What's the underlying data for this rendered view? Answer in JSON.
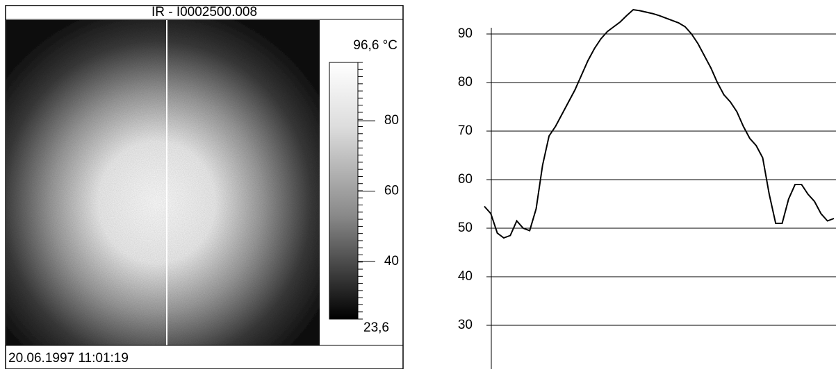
{
  "header": {
    "title": "IR - I0002500.008"
  },
  "colorbar": {
    "range": [
      {
        "value": 23.6,
        "label": "23,6"
      },
      {
        "value": 96.6,
        "label": "96,6 °C"
      }
    ],
    "ticks": [
      40,
      60,
      80
    ]
  },
  "footer": {
    "timestamp": "20.06.1997 11:01:19"
  },
  "chart_data": {
    "type": "line",
    "categories": [
      null,
      null,
      null,
      null,
      null,
      null,
      null,
      null,
      null,
      null,
      null,
      null,
      null,
      null,
      null,
      null,
      null,
      null,
      null,
      null,
      null,
      null,
      null,
      null,
      null,
      null,
      null,
      null,
      null,
      null,
      null,
      null,
      null,
      null,
      null,
      null,
      null,
      null,
      null,
      null,
      null,
      null,
      null,
      null,
      null,
      null,
      null,
      null,
      null,
      null,
      null,
      null,
      null,
      null,
      null
    ],
    "series": [
      {
        "color": "#000000",
        "values": [
          54.5,
          53,
          49,
          48,
          48.5,
          51.5,
          50,
          49.5,
          54,
          63,
          69,
          71,
          73.5,
          76,
          78.5,
          81.5,
          84.5,
          87,
          89,
          90.5,
          91.5,
          92.5,
          93.8,
          95,
          94.8,
          94.5,
          94.2,
          93.8,
          93.3,
          92.8,
          92.3,
          91.5,
          90,
          88,
          85.5,
          83,
          80,
          77.5,
          76,
          74,
          71,
          68.5,
          67,
          64.5,
          57,
          51,
          51,
          56,
          59,
          59,
          57,
          55.5,
          53,
          51.5,
          52
        ]
      }
    ],
    "ylim": [
      21,
      97
    ],
    "yticks": [
      30,
      40,
      50,
      60,
      70,
      80,
      90
    ],
    "grid": true
  }
}
